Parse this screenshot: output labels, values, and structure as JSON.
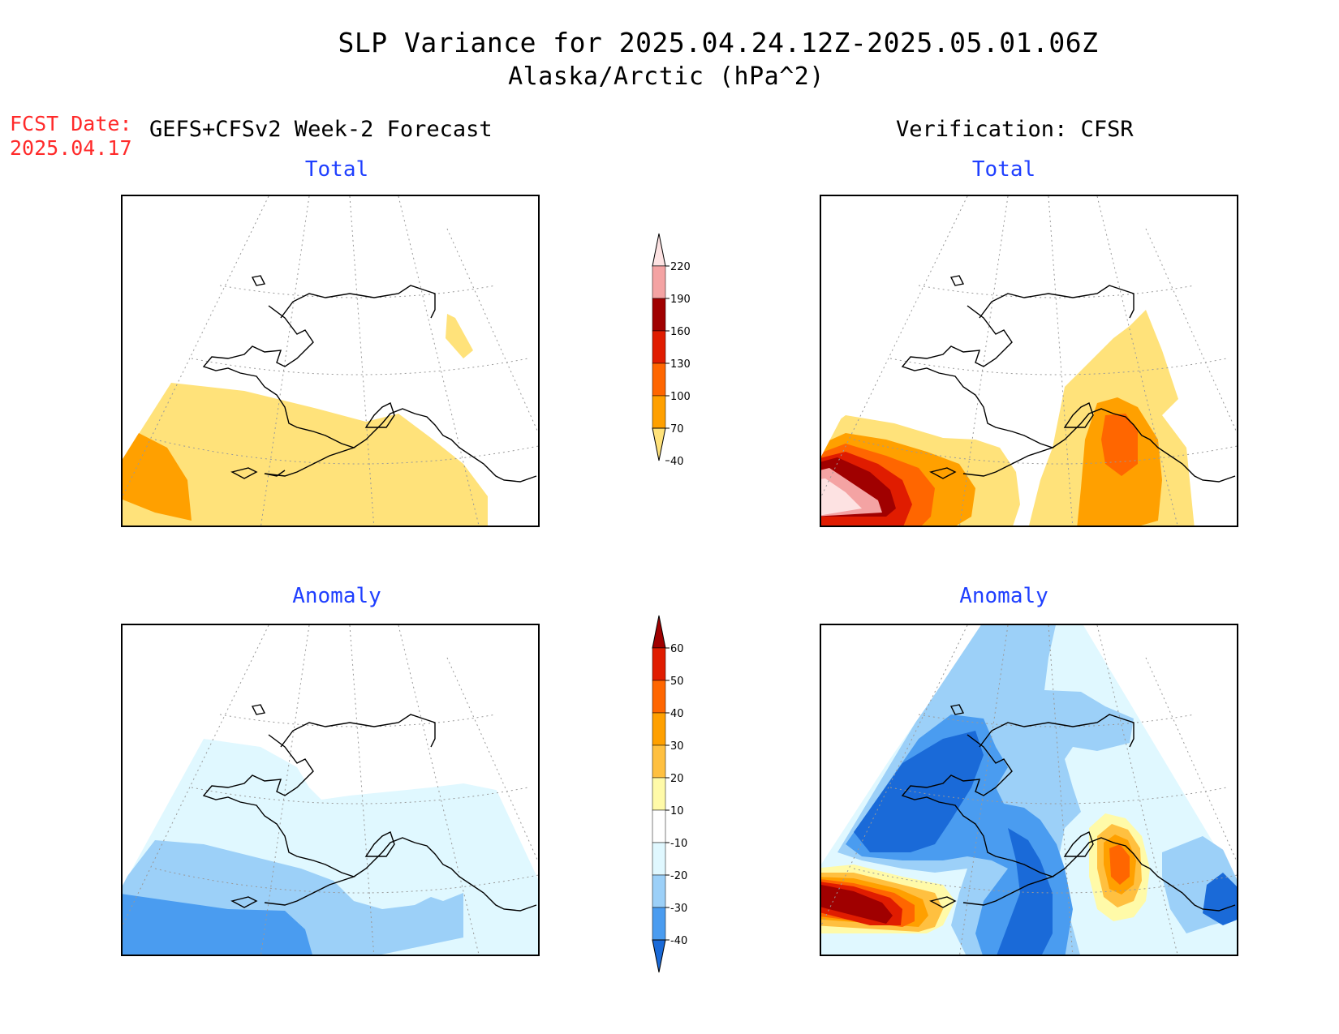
{
  "header": {
    "title": "SLP Variance for 2025.04.24.12Z-2025.05.01.06Z",
    "subtitle": "Alaska/Arctic (hPa^2)",
    "fcst_label": "FCST Date:",
    "fcst_date": "2025.04.17",
    "left_column": "GEFS+CFSv2 Week-2 Forecast",
    "right_column": "Verification: CFSR"
  },
  "panels": {
    "forecast_total": "Total",
    "verification_total": "Total",
    "forecast_anomaly": "Anomaly",
    "verification_anomaly": "Anomaly"
  },
  "colorbars": {
    "total": {
      "labels": [
        "220",
        "190",
        "160",
        "130",
        "100",
        "70",
        "40"
      ],
      "colors": [
        "#fde2e2",
        "#f4a3a3",
        "#a00000",
        "#e01c00",
        "#ff6600",
        "#ffa000",
        "#ffe27a"
      ]
    },
    "anomaly": {
      "labels": [
        "60",
        "50",
        "40",
        "30",
        "20",
        "10",
        "-10",
        "-20",
        "-30",
        "-40"
      ],
      "colors": [
        "#a00000",
        "#e01c00",
        "#ff6600",
        "#ffa000",
        "#ffc040",
        "#fffaa8",
        "#ffffff",
        "#e0f8ff",
        "#9cd0f8",
        "#4a9cf0",
        "#1a6ad8"
      ]
    }
  },
  "colors": {
    "title_text": "#000000",
    "fcst_text": "#ff2a2a",
    "panel_title": "#1f3fff"
  }
}
